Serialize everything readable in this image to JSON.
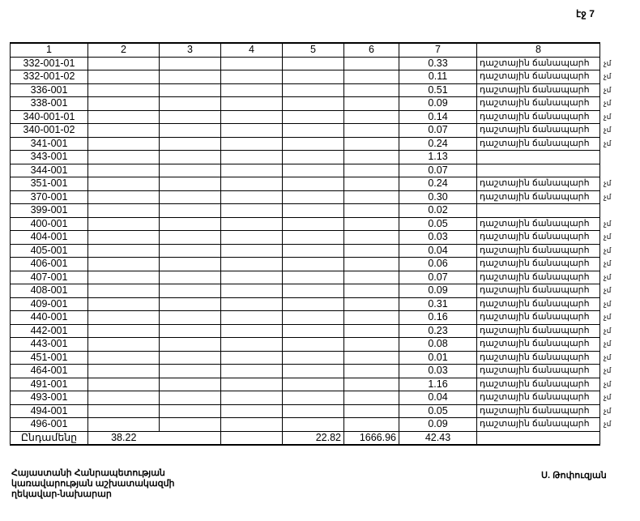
{
  "page_number": "էջ 7",
  "table": {
    "headers": [
      "1",
      "2",
      "3",
      "4",
      "5",
      "6",
      "7",
      "8"
    ],
    "rows": [
      {
        "id": "332-001-01",
        "area": "0.33",
        "purpose": "դաշտային ճանապարհ",
        "unit": "չմ"
      },
      {
        "id": "332-001-02",
        "area": "0.11",
        "purpose": "դաշտային ճանապարհ",
        "unit": "չմ"
      },
      {
        "id": "336-001",
        "area": "0.51",
        "purpose": "դաշտային ճանապարհ",
        "unit": "չմ"
      },
      {
        "id": "338-001",
        "area": "0.09",
        "purpose": "դաշտային ճանապարհ",
        "unit": "չմ"
      },
      {
        "id": "340-001-01",
        "area": "0.14",
        "purpose": "դաշտային ճանապարհ",
        "unit": "չմ"
      },
      {
        "id": "340-001-02",
        "area": "0.07",
        "purpose": "դաշտային ճանապարհ",
        "unit": "չմ"
      },
      {
        "id": "341-001",
        "area": "0.24",
        "purpose": "դաշտային ճանապարհ",
        "unit": "չմ"
      },
      {
        "id": "343-001",
        "area": "1.13",
        "purpose": "",
        "unit": ""
      },
      {
        "id": "344-001",
        "area": "0.07",
        "purpose": "",
        "unit": ""
      },
      {
        "id": "351-001",
        "area": "0.24",
        "purpose": "դաշտային ճանապարհ",
        "unit": "չմ"
      },
      {
        "id": "370-001",
        "area": "0.30",
        "purpose": "դաշտային ճանապարհ",
        "unit": "չմ"
      },
      {
        "id": "399-001",
        "area": "0.02",
        "purpose": "",
        "unit": ""
      },
      {
        "id": "400-001",
        "area": "0.05",
        "purpose": "դաշտային ճանապարհ",
        "unit": "չմ"
      },
      {
        "id": "404-001",
        "area": "0.03",
        "purpose": "դաշտային ճանապարհ",
        "unit": "չմ"
      },
      {
        "id": "405-001",
        "area": "0.04",
        "purpose": "դաշտային ճանապարհ",
        "unit": "չմ"
      },
      {
        "id": "406-001",
        "area": "0.06",
        "purpose": "դաշտային ճանապարհ",
        "unit": "չմ"
      },
      {
        "id": "407-001",
        "area": "0.07",
        "purpose": "դաշտային ճանապարհ",
        "unit": "չմ"
      },
      {
        "id": "408-001",
        "area": "0.09",
        "purpose": "դաշտային ճանապարհ",
        "unit": "չմ"
      },
      {
        "id": "409-001",
        "area": "0.31",
        "purpose": "դաշտային ճանապարհ",
        "unit": "չմ"
      },
      {
        "id": "440-001",
        "area": "0.16",
        "purpose": "դաշտային ճանապարհ",
        "unit": "չմ"
      },
      {
        "id": "442-001",
        "area": "0.23",
        "purpose": "դաշտային ճանապարհ",
        "unit": "չմ"
      },
      {
        "id": "443-001",
        "area": "0.08",
        "purpose": "դաշտային ճանապարհ",
        "unit": "չմ"
      },
      {
        "id": "451-001",
        "area": "0.01",
        "purpose": "դաշտային ճանապարհ",
        "unit": "չմ"
      },
      {
        "id": "464-001",
        "area": "0.03",
        "purpose": "դաշտային ճանապարհ",
        "unit": "չմ"
      },
      {
        "id": "491-001",
        "area": "1.16",
        "purpose": "դաշտային ճանապարհ",
        "unit": "չմ"
      },
      {
        "id": "493-001",
        "area": "0.04",
        "purpose": "դաշտային ճանապարհ",
        "unit": "չմ"
      },
      {
        "id": "494-001",
        "area": "0.05",
        "purpose": "դաշտային ճանապարհ",
        "unit": "չմ"
      },
      {
        "id": "496-001",
        "area": "0.09",
        "purpose": "դաշտային ճանապարհ",
        "unit": "չմ"
      }
    ],
    "total": {
      "label": "Ընդամենը",
      "col2": "38.22",
      "col3": "",
      "col4": "",
      "col5": "22.82",
      "col6": "1666.96",
      "col7": "42.43",
      "col8": ""
    }
  },
  "footer": {
    "position_lines": [
      "Հայաստանի Հանրապետության",
      "կառավարության աշխատակազմի",
      "ղեկավար-նախարար"
    ],
    "signatory": "Ս. Թոփուզյան"
  }
}
